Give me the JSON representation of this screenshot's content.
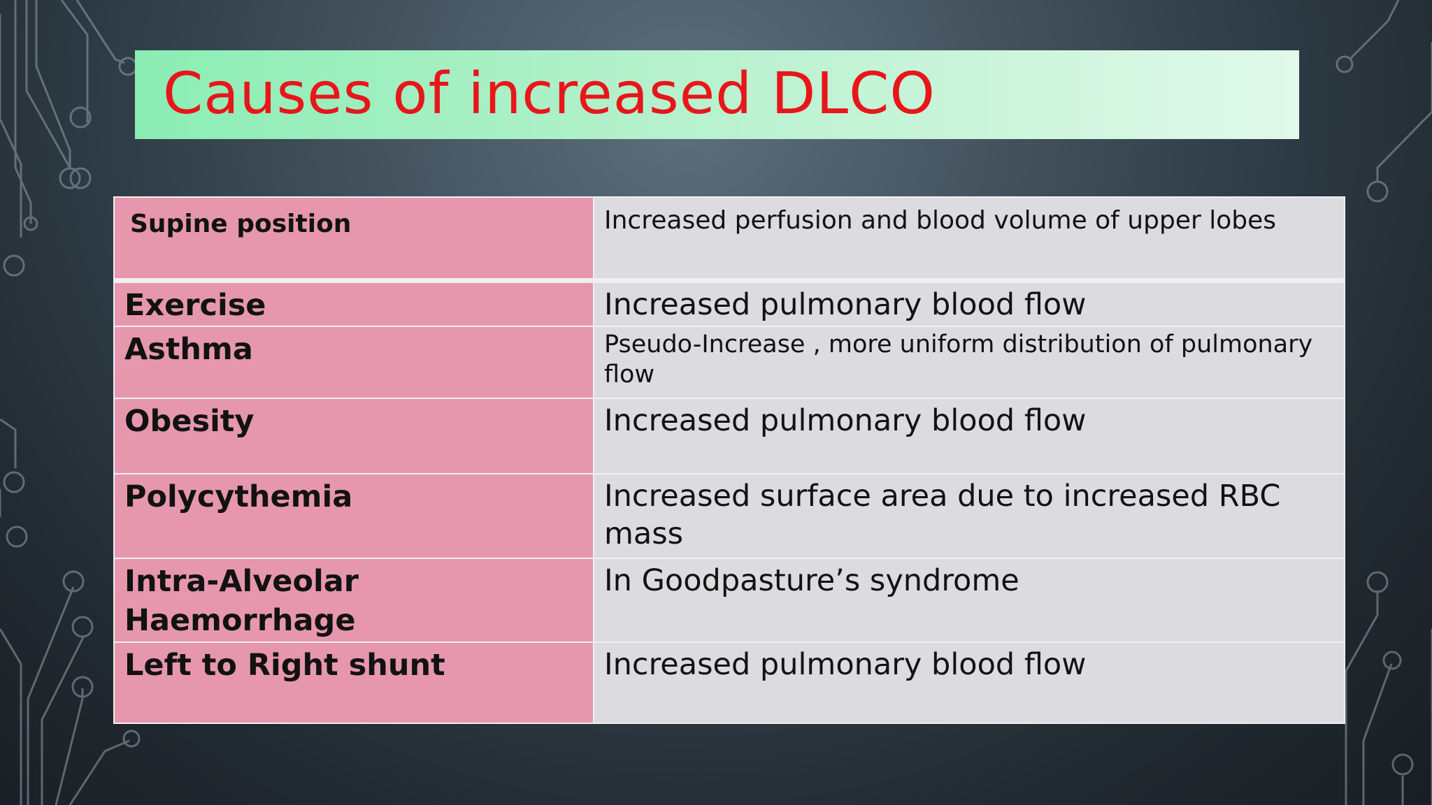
{
  "title": "Causes of increased DLCO",
  "rows": [
    {
      "cause": "Supine position",
      "reason": "Increased perfusion and blood volume of upper lobes"
    },
    {
      "cause": "Exercise",
      "reason": "Increased pulmonary blood flow"
    },
    {
      "cause": "Asthma",
      "reason": "Pseudo-Increase , more uniform distribution of pulmonary flow"
    },
    {
      "cause": "Obesity",
      "reason": "Increased pulmonary blood flow"
    },
    {
      "cause": "Polycythemia",
      "reason": "Increased surface area due to increased RBC mass"
    },
    {
      "cause": "Intra-Alveolar Haemorrhage",
      "reason": "In Goodpasture’s syndrome"
    },
    {
      "cause": "Left to Right shunt",
      "reason": "Increased pulmonary blood flow"
    }
  ],
  "colors": {
    "title_text": "#e8161a",
    "title_bar": "#b5f1cc",
    "cause_cell": "#e697ad",
    "reason_cell": "#dcdbdf"
  }
}
